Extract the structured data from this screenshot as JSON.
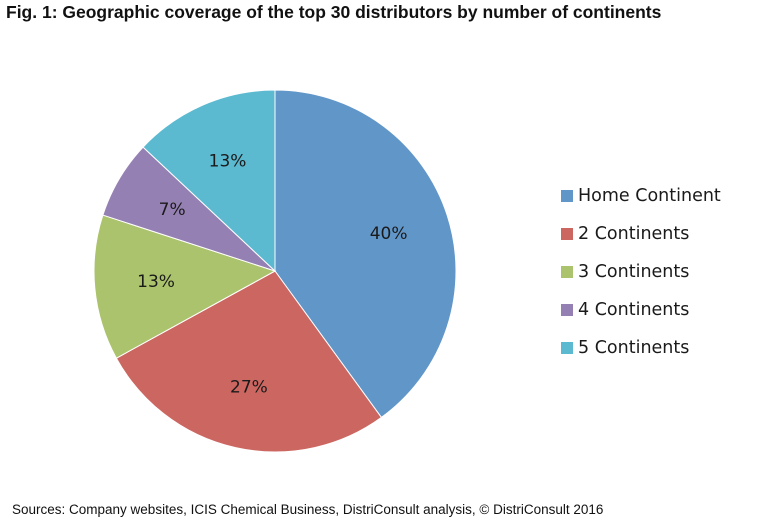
{
  "chart_data": {
    "type": "pie",
    "title": "Fig. 1: Geographic coverage of the top 30 distributors by number of continents",
    "categories": [
      "Home Continent",
      "2 Continents",
      "3 Continents",
      "4 Continents",
      "5 Continents"
    ],
    "values": [
      40,
      27,
      13,
      7,
      13
    ],
    "data_labels": [
      "40%",
      "27%",
      "13%",
      "7%",
      "13%"
    ],
    "colors": [
      "#6196C9",
      "#CC6660",
      "#ABC36C",
      "#9580B3",
      "#5BB9D0"
    ],
    "legend_position": "right"
  },
  "footer": {
    "source": "Sources: Company websites, ICIS Chemical Business, DistriConsult analysis, © DistriConsult 2016"
  }
}
